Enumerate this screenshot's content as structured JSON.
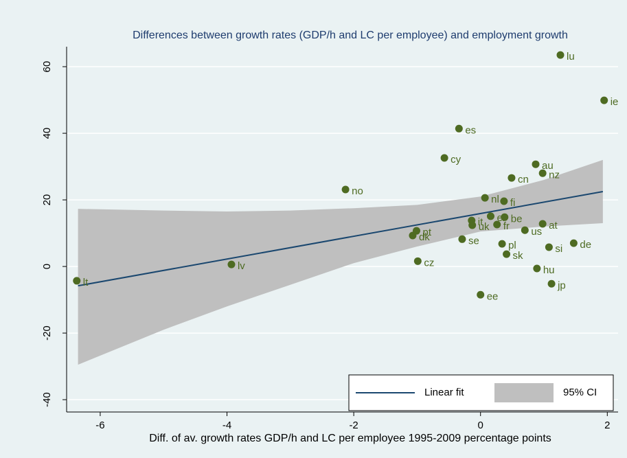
{
  "chart_data": {
    "type": "scatter",
    "title": "Differences between growth rates (GDP/h and LC per employee) and employment growth",
    "x_label": "Diff. of av. growth rates GDP/h and LC per employee  1995-2009 percentage points",
    "xlim": [
      -6.53,
      2.17
    ],
    "xticks": [
      -6,
      -4,
      -2,
      0,
      2
    ],
    "ylim": [
      -43.7,
      66
    ],
    "yticks": [
      -40,
      -20,
      0,
      20,
      40,
      60
    ],
    "grid": true,
    "legend": "bottom-right",
    "points": {
      "color": "#4e6b22",
      "labels": [
        "lu",
        "ie",
        "es",
        "cy",
        "au",
        "nz",
        "cn",
        "no",
        "nl",
        "fi",
        "it",
        "el",
        "be",
        "at",
        "uk",
        "fr",
        "us",
        "pt",
        "dk",
        "se",
        "pl",
        "de",
        "si",
        "sk",
        "cz",
        "lv",
        "hu",
        "lt",
        "jp",
        "ee"
      ],
      "x": [
        1.26,
        1.95,
        -0.34,
        -0.57,
        0.87,
        0.98,
        0.49,
        -2.13,
        0.07,
        0.37,
        -0.14,
        0.16,
        0.38,
        0.98,
        -0.13,
        0.26,
        0.7,
        -1.01,
        -1.07,
        -0.29,
        0.34,
        1.47,
        1.08,
        0.41,
        -0.99,
        -3.93,
        0.89,
        -6.37,
        1.12,
        0.0
      ],
      "y": [
        63.5,
        49.9,
        41.4,
        32.6,
        30.7,
        28.0,
        26.6,
        23.1,
        20.6,
        19.6,
        13.8,
        15.1,
        14.8,
        12.8,
        12.4,
        12.6,
        10.9,
        10.7,
        9.3,
        8.2,
        6.8,
        7.0,
        5.8,
        3.7,
        1.6,
        0.6,
        -0.6,
        -4.3,
        -5.2,
        -8.5
      ]
    },
    "fit": {
      "name": "Linear fit",
      "color": "#1a476f",
      "x": [
        -6.35,
        1.93
      ],
      "y": [
        -5.8,
        22.5
      ]
    },
    "ci": {
      "name": "95% CI",
      "color": "#bfbfbf",
      "x": [
        -6.35,
        -5,
        -4,
        -3,
        -2,
        -1,
        0,
        1,
        1.93
      ],
      "lower": [
        -29.5,
        -19,
        -12,
        -5.5,
        1,
        6,
        10.5,
        12,
        13
      ],
      "upper": [
        17.3,
        16.8,
        16.5,
        16.8,
        17.5,
        18.5,
        21,
        26,
        32
      ]
    }
  }
}
